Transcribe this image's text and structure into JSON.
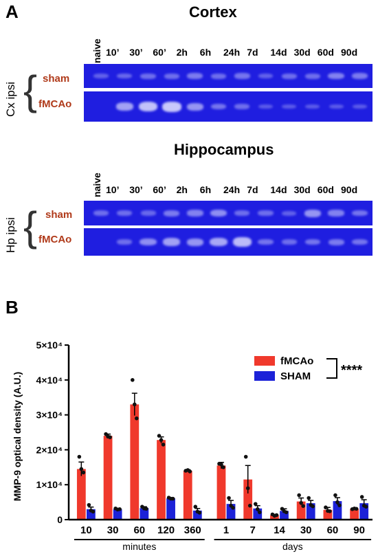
{
  "panel_a": {
    "letter": "A",
    "cortex": {
      "title": "Cortex",
      "side_label": "Cx ipsi",
      "rows": [
        "sham",
        "fMCAo"
      ],
      "sham_intensity": [
        0.2,
        0.25,
        0.3,
        0.3,
        0.4,
        0.3,
        0.35,
        0.2,
        0.3,
        0.3,
        0.45,
        0.4
      ],
      "fmcao_intensity": [
        0.0,
        0.7,
        0.95,
        1.0,
        0.6,
        0.35,
        0.3,
        0.15,
        0.15,
        0.15,
        0.15,
        0.15
      ]
    },
    "hippocampus": {
      "title": "Hippocampus",
      "side_label": "Hp ipsi",
      "rows": [
        "sham",
        "fMCAo"
      ],
      "sham_intensity": [
        0.3,
        0.3,
        0.25,
        0.4,
        0.45,
        0.55,
        0.3,
        0.3,
        0.2,
        0.6,
        0.45,
        0.35
      ],
      "fmcao_intensity": [
        0.0,
        0.3,
        0.55,
        0.7,
        0.6,
        0.75,
        0.9,
        0.35,
        0.3,
        0.35,
        0.4,
        0.35
      ]
    },
    "time_labels": [
      "10’",
      "30’",
      "60’",
      "2h",
      "6h",
      "24h",
      "7d",
      "14d",
      "30d",
      "60d",
      "90d"
    ],
    "naive_label": "naive"
  },
  "panel_b": {
    "letter": "B",
    "significance": "****"
  },
  "colors": {
    "fmcao": "#f0392c",
    "sham": "#1c22d8",
    "gel": "#1f1ee0",
    "row_label": "#b03a1a"
  },
  "chart_data": {
    "type": "bar",
    "categories": [
      "10",
      "30",
      "60",
      "120",
      "360",
      "1",
      "7",
      "14",
      "30",
      "60",
      "90"
    ],
    "groups": [
      {
        "label": "minutes",
        "categories": [
          "10",
          "30",
          "60",
          "120",
          "360"
        ]
      },
      {
        "label": "days",
        "categories": [
          "1",
          "7",
          "14",
          "30",
          "60",
          "90"
        ]
      }
    ],
    "series": [
      {
        "name": "fMCAo",
        "values": [
          14500,
          24000,
          33000,
          22800,
          14000,
          15500,
          11500,
          1300,
          5200,
          2800,
          3100
        ],
        "errors": [
          2000,
          500,
          3200,
          900,
          300,
          900,
          4000,
          200,
          1000,
          700,
          200
        ],
        "points": [
          [
            18000,
            14500,
            13500
          ],
          [
            24500,
            23800,
            23600
          ],
          [
            40000,
            33000,
            29000
          ],
          [
            24000,
            22800,
            21500
          ],
          [
            14000,
            14200,
            13800
          ],
          [
            16000,
            15800,
            15000
          ],
          [
            18000,
            9000,
            4000
          ],
          [
            1500,
            1100,
            1300
          ],
          [
            7000,
            4800,
            3900
          ],
          [
            3500,
            2500,
            2400
          ],
          [
            3000,
            3200,
            3100
          ]
        ]
      },
      {
        "name": "SHAM",
        "values": [
          3000,
          3000,
          3300,
          6100,
          2600,
          4500,
          3200,
          2500,
          4700,
          5300,
          4700
        ],
        "errors": [
          600,
          200,
          400,
          200,
          600,
          1000,
          800,
          600,
          800,
          1000,
          1000
        ],
        "points": [
          [
            4200,
            2600,
            2300
          ],
          [
            3200,
            2900,
            3000
          ],
          [
            3700,
            3200,
            3100
          ],
          [
            6300,
            6000,
            6000
          ],
          [
            3700,
            2300,
            2000
          ],
          [
            6200,
            4000,
            3400
          ],
          [
            4500,
            3000,
            2100
          ],
          [
            3100,
            2400,
            2100
          ],
          [
            6200,
            4200,
            3800
          ],
          [
            7000,
            5000,
            4100
          ],
          [
            6500,
            4000,
            3700
          ]
        ]
      }
    ],
    "ylabel": "MMP-9 optical density (A.U.)",
    "xlabel": "",
    "ylim": [
      0,
      50000
    ],
    "yticks": [
      0,
      10000,
      20000,
      30000,
      40000,
      50000
    ],
    "ytick_labels": [
      "0",
      "1×10⁴",
      "2×10⁴",
      "3×10⁴",
      "4×10⁴",
      "5×10⁴"
    ],
    "legend": [
      "fMCAo",
      "SHAM"
    ],
    "legend_position": "top-right"
  }
}
